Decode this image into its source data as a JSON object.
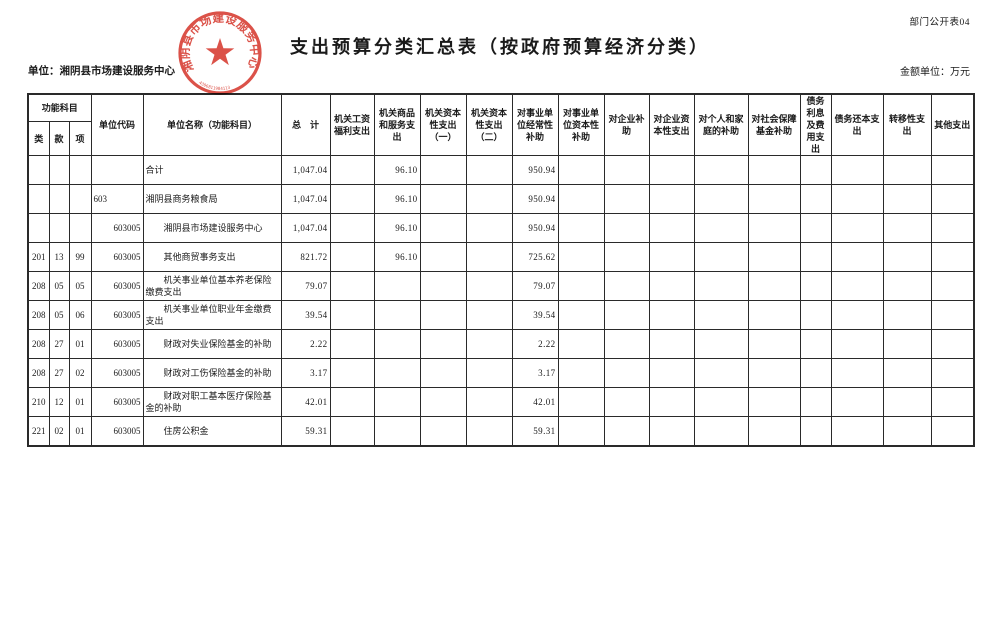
{
  "meta": {
    "doc_no": "部门公开表04",
    "title": "支出预算分类汇总表（按政府预算经济分类）",
    "unit_line": "单位：湘阴县市场建设服务中心",
    "amount_unit": "金额单位：万元"
  },
  "stamp": {
    "text": "湘阴县市场建设服务中心",
    "serial": "4306811984113",
    "color": "#d63a2f"
  },
  "table": {
    "header": {
      "func_group": "功能科目",
      "func_cols": [
        "类",
        "款",
        "项"
      ],
      "unit_code": "单位代码",
      "unit_name": "单位名称（功能科目）",
      "total": "总　计",
      "econ_cols": [
        "机关工资福利支出",
        "机关商品和服务支出",
        "机关资本性支出（一）",
        "机关资本性支出（二）",
        "对事业单位经常性补助",
        "对事业单位资本性补助",
        "对企业补助",
        "对企业资本性支出",
        "对个人和家庭的补助",
        "对社会保障基金补助",
        "债务利息及费用支出",
        "债务还本支出",
        "转移性支出",
        "其他支出"
      ]
    },
    "rows": [
      {
        "lei": "",
        "kuan": "",
        "xiang": "",
        "code": "",
        "code_align": "left",
        "name": "合计",
        "indent": false,
        "total": "1,047.04",
        "v": [
          "",
          "96.10",
          "",
          "",
          "950.94",
          "",
          "",
          "",
          "",
          "",
          "",
          "",
          "",
          ""
        ]
      },
      {
        "lei": "",
        "kuan": "",
        "xiang": "",
        "code": "603",
        "code_align": "left",
        "name": "湘阴县商务粮食局",
        "indent": false,
        "total": "1,047.04",
        "v": [
          "",
          "96.10",
          "",
          "",
          "950.94",
          "",
          "",
          "",
          "",
          "",
          "",
          "",
          "",
          ""
        ]
      },
      {
        "lei": "",
        "kuan": "",
        "xiang": "",
        "code": "603005",
        "code_align": "right",
        "name": "湘阴县市场建设服务中心",
        "indent": true,
        "total": "1,047.04",
        "v": [
          "",
          "96.10",
          "",
          "",
          "950.94",
          "",
          "",
          "",
          "",
          "",
          "",
          "",
          "",
          ""
        ]
      },
      {
        "lei": "201",
        "kuan": "13",
        "xiang": "99",
        "code": "603005",
        "code_align": "right",
        "name": "其他商贸事务支出",
        "indent": true,
        "total": "821.72",
        "v": [
          "",
          "96.10",
          "",
          "",
          "725.62",
          "",
          "",
          "",
          "",
          "",
          "",
          "",
          "",
          ""
        ]
      },
      {
        "lei": "208",
        "kuan": "05",
        "xiang": "05",
        "code": "603005",
        "code_align": "right",
        "name": "机关事业单位基本养老保险缴费支出",
        "indent": true,
        "total": "79.07",
        "v": [
          "",
          "",
          "",
          "",
          "79.07",
          "",
          "",
          "",
          "",
          "",
          "",
          "",
          "",
          ""
        ]
      },
      {
        "lei": "208",
        "kuan": "05",
        "xiang": "06",
        "code": "603005",
        "code_align": "right",
        "name": "机关事业单位职业年金缴费支出",
        "indent": true,
        "total": "39.54",
        "v": [
          "",
          "",
          "",
          "",
          "39.54",
          "",
          "",
          "",
          "",
          "",
          "",
          "",
          "",
          ""
        ]
      },
      {
        "lei": "208",
        "kuan": "27",
        "xiang": "01",
        "code": "603005",
        "code_align": "right",
        "name": "财政对失业保险基金的补助",
        "indent": true,
        "total": "2.22",
        "v": [
          "",
          "",
          "",
          "",
          "2.22",
          "",
          "",
          "",
          "",
          "",
          "",
          "",
          "",
          ""
        ]
      },
      {
        "lei": "208",
        "kuan": "27",
        "xiang": "02",
        "code": "603005",
        "code_align": "right",
        "name": "财政对工伤保险基金的补助",
        "indent": true,
        "total": "3.17",
        "v": [
          "",
          "",
          "",
          "",
          "3.17",
          "",
          "",
          "",
          "",
          "",
          "",
          "",
          "",
          ""
        ]
      },
      {
        "lei": "210",
        "kuan": "12",
        "xiang": "01",
        "code": "603005",
        "code_align": "right",
        "name": "财政对职工基本医疗保险基金的补助",
        "indent": true,
        "total": "42.01",
        "v": [
          "",
          "",
          "",
          "",
          "42.01",
          "",
          "",
          "",
          "",
          "",
          "",
          "",
          "",
          ""
        ]
      },
      {
        "lei": "221",
        "kuan": "02",
        "xiang": "01",
        "code": "603005",
        "code_align": "right",
        "name": "住房公积金",
        "indent": true,
        "total": "59.31",
        "v": [
          "",
          "",
          "",
          "",
          "59.31",
          "",
          "",
          "",
          "",
          "",
          "",
          "",
          "",
          ""
        ]
      }
    ]
  }
}
